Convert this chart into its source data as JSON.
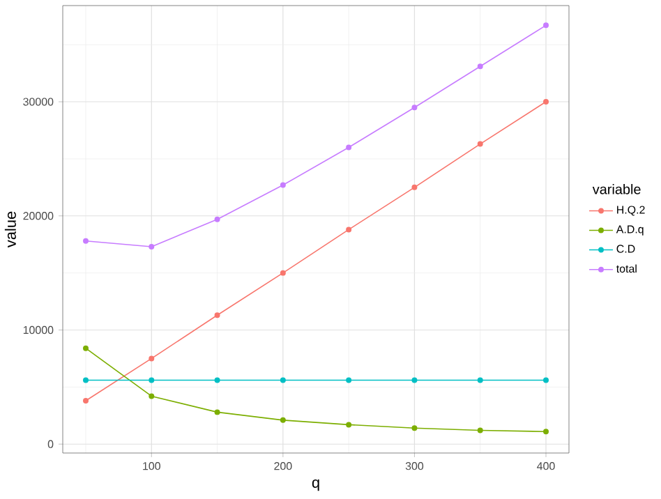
{
  "chart_data": {
    "type": "line",
    "xlabel": "q",
    "ylabel": "value",
    "legend_title": "variable",
    "x": [
      50,
      100,
      150,
      200,
      250,
      300,
      350,
      400
    ],
    "series": [
      {
        "name": "H.Q.2",
        "color": "#f8766d",
        "values": [
          3800,
          7500,
          11300,
          15000,
          18800,
          22500,
          26300,
          30000
        ]
      },
      {
        "name": "A.D.q",
        "color": "#7cae00",
        "values": [
          8400,
          4200,
          2800,
          2100,
          1700,
          1400,
          1200,
          1100
        ]
      },
      {
        "name": "C.D",
        "color": "#00bfc4",
        "values": [
          5600,
          5600,
          5600,
          5600,
          5600,
          5600,
          5600,
          5600
        ]
      },
      {
        "name": "total",
        "color": "#c77cff",
        "values": [
          17800,
          17300,
          19700,
          22700,
          26000,
          29500,
          33100,
          36700
        ]
      }
    ],
    "xlim": [
      32.5,
      417.5
    ],
    "ylim": [
      -780,
      38430
    ],
    "xticks": [
      100,
      200,
      300,
      400
    ],
    "yticks": [
      0,
      10000,
      20000,
      30000
    ],
    "grid": true,
    "legend": "right",
    "marker": "circle",
    "line_style": "solid"
  }
}
